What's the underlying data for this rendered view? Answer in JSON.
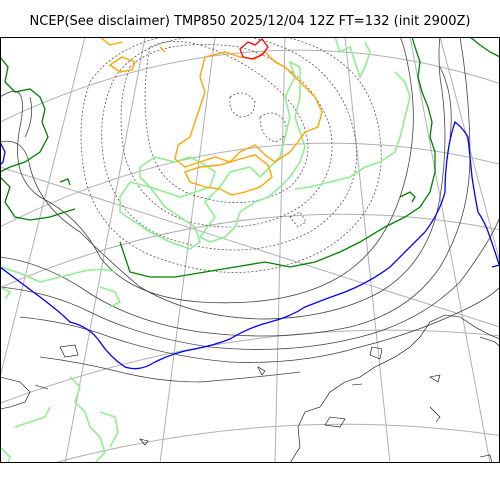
{
  "title": "NCEP(See disclaimer) TMP850 2025/12/04 12Z FT=132 (init 2900Z)",
  "colors": {
    "background": "#ffffff",
    "frame": "#000000",
    "graticule": "#b0b0b0",
    "coastline": "#000000",
    "isotherm_dotted": "#555555",
    "isotherm_green": "#90ee90",
    "isotherm_dark_green": "#008000",
    "isotherm_blue": "#0000ff",
    "isotherm_orange": "#ffa500",
    "isotherm_red": "#ff0000"
  }
}
